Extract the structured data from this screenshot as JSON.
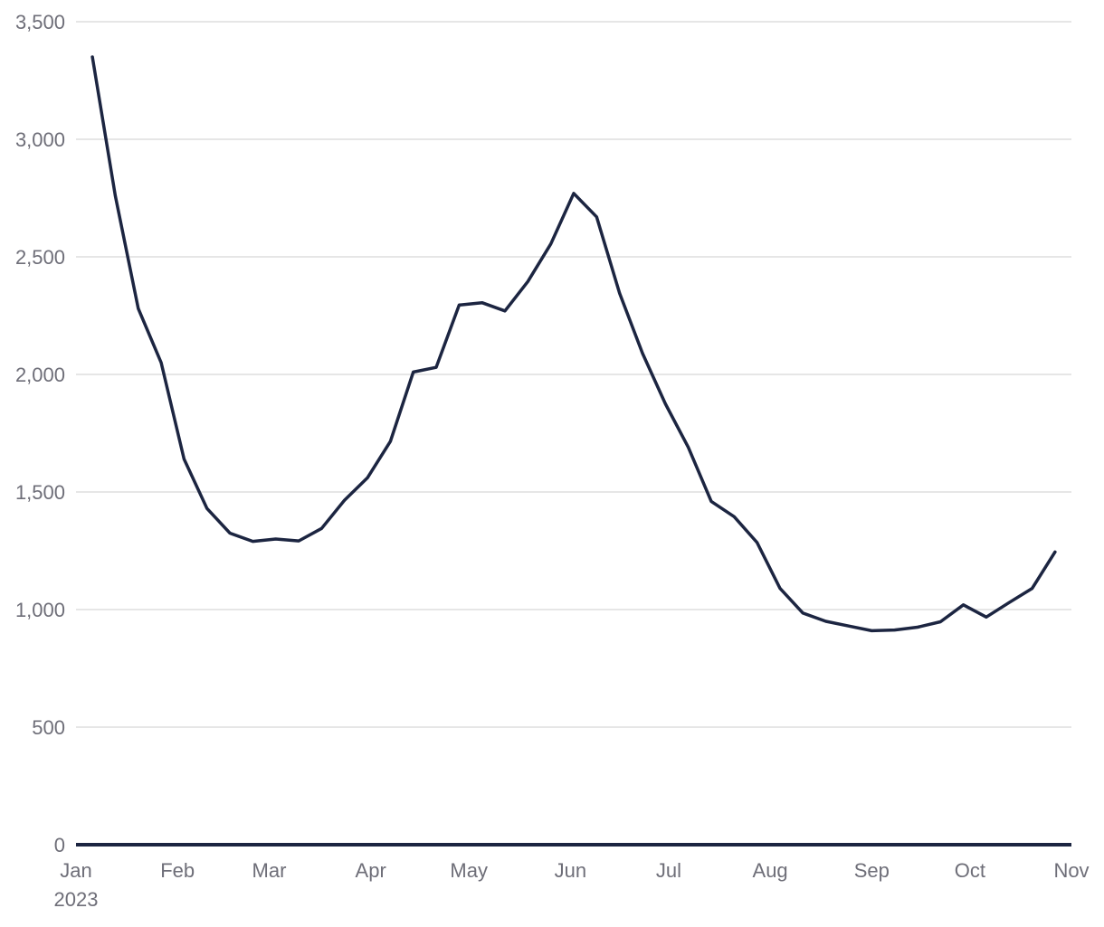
{
  "chart_data": {
    "type": "line",
    "title": "",
    "xlabel": "",
    "ylabel": "",
    "ylim": [
      0,
      3500
    ],
    "y_ticks": [
      0,
      500,
      1000,
      1500,
      2000,
      2500,
      3000,
      3500
    ],
    "y_tick_labels": [
      "0",
      "500",
      "1,000",
      "1,500",
      "2,000",
      "2,500",
      "3,000",
      "3,500"
    ],
    "x_range": [
      "2023-01-01",
      "2023-11-01"
    ],
    "x_ticks": [
      "2023-01-01",
      "2023-02-01",
      "2023-03-01",
      "2023-04-01",
      "2023-05-01",
      "2023-06-01",
      "2023-07-01",
      "2023-08-01",
      "2023-09-01",
      "2023-10-01",
      "2023-11-01"
    ],
    "x_tick_labels": [
      "Jan",
      "Feb",
      "Mar",
      "Apr",
      "May",
      "Jun",
      "Jul",
      "Aug",
      "Sep",
      "Oct",
      "Nov"
    ],
    "x_tick_sublabel": "2023",
    "grid": true,
    "line_color": "#1c2541",
    "series": [
      {
        "x": [
          "2023-01-06",
          "2023-01-13",
          "2023-01-20",
          "2023-01-27",
          "2023-02-03",
          "2023-02-10",
          "2023-02-17",
          "2023-02-24",
          "2023-03-03",
          "2023-03-10",
          "2023-03-17",
          "2023-03-24",
          "2023-03-31",
          "2023-04-07",
          "2023-04-14",
          "2023-04-21",
          "2023-04-28",
          "2023-05-05",
          "2023-05-12",
          "2023-05-19",
          "2023-05-26",
          "2023-06-02",
          "2023-06-09",
          "2023-06-16",
          "2023-06-23",
          "2023-06-30",
          "2023-07-07",
          "2023-07-14",
          "2023-07-21",
          "2023-07-28",
          "2023-08-04",
          "2023-08-11",
          "2023-08-18",
          "2023-08-25",
          "2023-09-01",
          "2023-09-08",
          "2023-09-15",
          "2023-09-22",
          "2023-09-29",
          "2023-10-06",
          "2023-10-13",
          "2023-10-20",
          "2023-10-27"
        ],
        "y": [
          3350,
          2760,
          2280,
          2050,
          1640,
          1430,
          1325,
          1290,
          1300,
          1292,
          1345,
          1465,
          1560,
          1715,
          2010,
          2030,
          2295,
          2305,
          2270,
          2395,
          2555,
          2770,
          2670,
          2345,
          2090,
          1875,
          1690,
          1460,
          1395,
          1285,
          1090,
          985,
          950,
          930,
          910,
          913,
          925,
          948,
          1020,
          968,
          1030,
          1090,
          1245
        ]
      }
    ]
  }
}
